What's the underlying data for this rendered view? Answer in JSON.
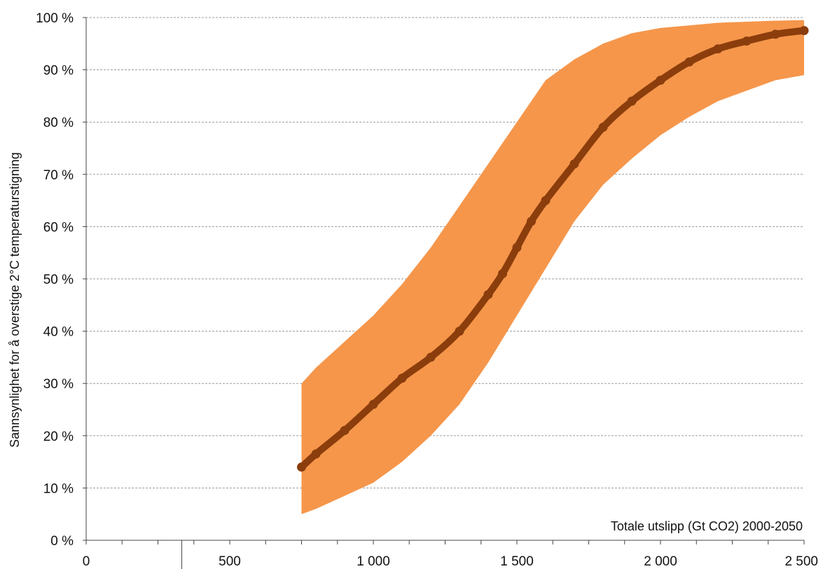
{
  "chart_data": {
    "type": "area",
    "title": "",
    "xlabel": "Totale utslipp (Gt CO2) 2000-2050",
    "ylabel": "Sannsynlighet for å overstige 2°C temperaturstigning",
    "xlim": [
      0,
      2500
    ],
    "ylim": [
      0,
      100
    ],
    "x_ticks": [
      0,
      500,
      1000,
      1500,
      2000,
      2500
    ],
    "x_tick_labels": [
      "0",
      "500",
      "1 000",
      "1 500",
      "2 000",
      "2 500"
    ],
    "y_ticks": [
      0,
      10,
      20,
      30,
      40,
      50,
      60,
      70,
      80,
      90,
      100
    ],
    "y_tick_labels": [
      "0 %",
      "10 %",
      "20 %",
      "30 %",
      "40 %",
      "50 %",
      "60 %",
      "70 %",
      "80 %",
      "90 %",
      "100 %"
    ],
    "grid": true,
    "band": {
      "color": "#f5964b",
      "x": [
        750,
        800,
        900,
        1000,
        1100,
        1200,
        1300,
        1400,
        1500,
        1600,
        1700,
        1800,
        1900,
        2000,
        2100,
        2200,
        2300,
        2400,
        2500
      ],
      "upper": [
        30,
        33,
        38,
        43,
        49,
        56,
        64,
        72,
        80,
        88,
        92,
        95,
        97,
        98,
        98.5,
        99,
        99.2,
        99.4,
        99.5
      ],
      "lower": [
        5,
        6,
        8.5,
        11,
        15,
        20,
        26,
        34,
        43,
        52,
        61,
        68,
        73,
        77.5,
        81,
        84,
        86,
        88,
        89
      ]
    },
    "series": [
      {
        "color": "#8b3d0c",
        "x": [
          750,
          800,
          900,
          1000,
          1100,
          1200,
          1300,
          1400,
          1450,
          1500,
          1550,
          1600,
          1700,
          1800,
          1900,
          2000,
          2100,
          2200,
          2300,
          2400,
          2500
        ],
        "y": [
          14,
          16.5,
          21,
          26,
          31,
          35,
          40,
          47,
          51,
          56,
          61,
          65,
          72,
          79,
          84,
          88,
          91.5,
          94,
          95.5,
          96.8,
          97.5
        ]
      }
    ],
    "annotations": [
      "Totale utslipp (Gt CO2) 2000-2050"
    ],
    "legend": "none"
  }
}
